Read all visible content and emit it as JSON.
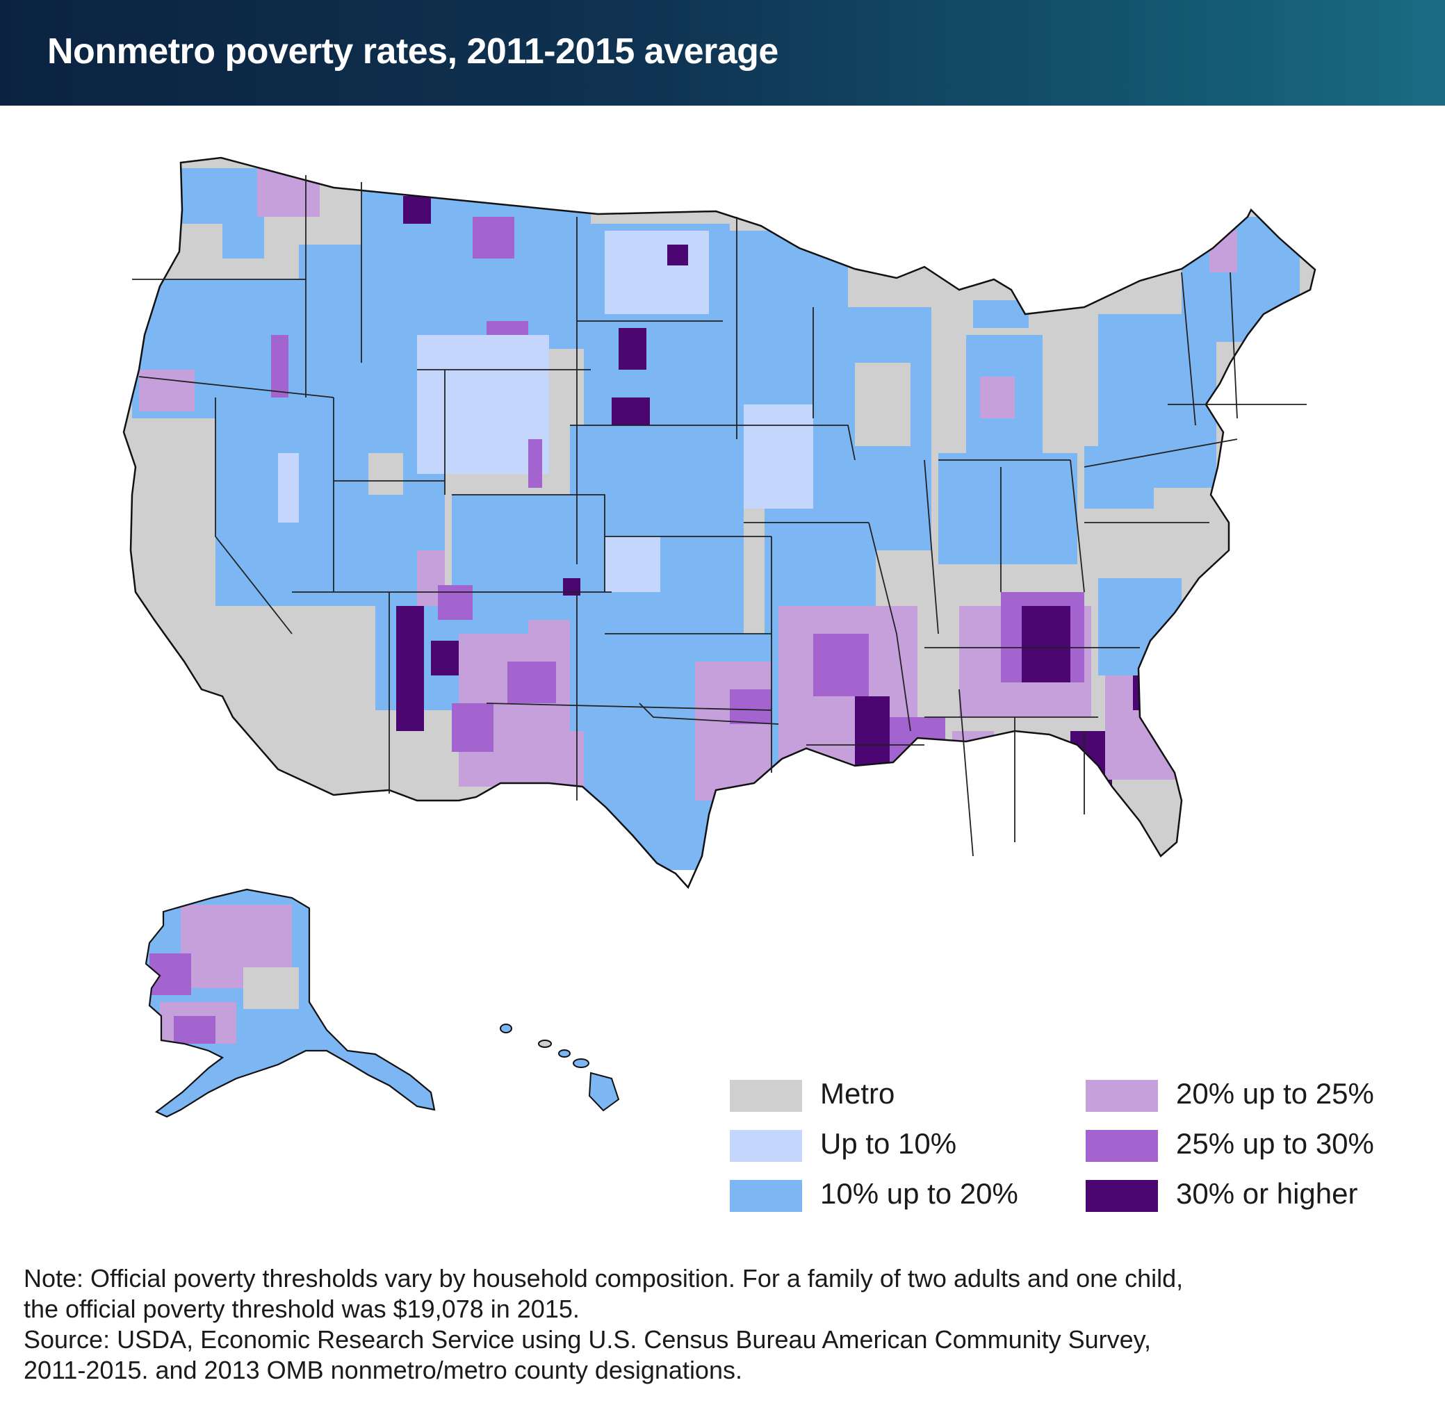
{
  "title": "Nonmetro poverty rates, 2011-2015 average",
  "legend": [
    {
      "label": "Metro",
      "color": "#cfcfcf"
    },
    {
      "label": "Up to 10%",
      "color": "#c4d6fb"
    },
    {
      "label": "10% up to 20%",
      "color": "#7cb6f3"
    },
    {
      "label": "20% up to 25%",
      "color": "#c5a0db"
    },
    {
      "label": "25% up to 30%",
      "color": "#a464cf"
    },
    {
      "label": "30% or higher",
      "color": "#4b0672"
    }
  ],
  "note": {
    "line1": "Note: Official poverty thresholds vary by household composition. For a family of two adults and one child,",
    "line2": "the official poverty threshold was $19,078 in 2015.",
    "line3": "Source: USDA, Economic Research Service using U.S. Census Bureau American Community Survey,",
    "line4": "2011-2015. and 2013 OMB nonmetro/metro county designations."
  }
}
